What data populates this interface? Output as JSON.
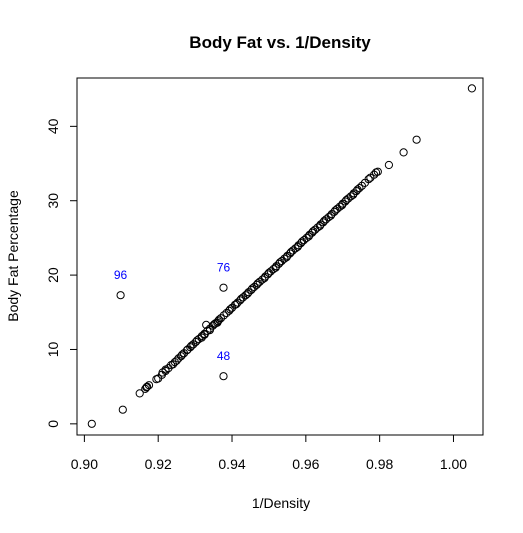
{
  "chart_data": {
    "type": "scatter",
    "title": "Body Fat vs. 1/Density",
    "xlabel": "1/Density",
    "ylabel": "Body Fat Percentage",
    "xlim": [
      0.898,
      1.008
    ],
    "ylim": [
      -1.5,
      46.5
    ],
    "xticks": [
      "0.90",
      "0.92",
      "0.94",
      "0.96",
      "0.98",
      "1.00"
    ],
    "yticks": [
      "0",
      "10",
      "20",
      "30",
      "40"
    ],
    "grid": false,
    "legend": "none",
    "annotations": [
      {
        "text": "96",
        "x": 0.9098,
        "y": 17.3,
        "color": "#0000ff"
      },
      {
        "text": "76",
        "x": 0.9377,
        "y": 18.3,
        "color": "#0000ff"
      },
      {
        "text": "48",
        "x": 0.9377,
        "y": 6.4,
        "color": "#0000ff"
      }
    ],
    "points": [
      [
        0.902,
        0.0
      ],
      [
        0.9104,
        1.9
      ],
      [
        0.9098,
        17.3
      ],
      [
        0.9377,
        18.3
      ],
      [
        0.9377,
        6.4
      ],
      [
        0.915,
        4.1
      ],
      [
        0.9165,
        4.7
      ],
      [
        0.917,
        5.0
      ],
      [
        0.9175,
        5.2
      ],
      [
        0.92,
        6.1
      ],
      [
        0.921,
        6.6
      ],
      [
        0.922,
        7.1
      ],
      [
        0.9228,
        7.5
      ],
      [
        0.9235,
        7.9
      ],
      [
        0.9245,
        8.3
      ],
      [
        0.9255,
        8.8
      ],
      [
        0.9262,
        9.1
      ],
      [
        0.927,
        9.5
      ],
      [
        0.9278,
        9.9
      ],
      [
        0.9287,
        10.3
      ],
      [
        0.9295,
        10.7
      ],
      [
        0.9302,
        11.0
      ],
      [
        0.931,
        11.4
      ],
      [
        0.9318,
        11.8
      ],
      [
        0.9325,
        12.1
      ],
      [
        0.9333,
        12.5
      ],
      [
        0.934,
        12.8
      ],
      [
        0.9348,
        13.2
      ],
      [
        0.9355,
        13.5
      ],
      [
        0.9362,
        13.8
      ],
      [
        0.937,
        14.2
      ],
      [
        0.9378,
        14.6
      ],
      [
        0.9385,
        14.9
      ],
      [
        0.9392,
        15.2
      ],
      [
        0.94,
        15.6
      ],
      [
        0.9408,
        16.0
      ],
      [
        0.9415,
        16.3
      ],
      [
        0.9422,
        16.6
      ],
      [
        0.943,
        17.0
      ],
      [
        0.9437,
        17.3
      ],
      [
        0.9445,
        17.7
      ],
      [
        0.9452,
        18.0
      ],
      [
        0.946,
        18.4
      ],
      [
        0.9467,
        18.7
      ],
      [
        0.9475,
        19.1
      ],
      [
        0.9482,
        19.4
      ],
      [
        0.949,
        19.8
      ],
      [
        0.9497,
        20.1
      ],
      [
        0.9505,
        20.5
      ],
      [
        0.9512,
        20.8
      ],
      [
        0.952,
        21.2
      ],
      [
        0.9527,
        21.5
      ],
      [
        0.9535,
        21.9
      ],
      [
        0.9542,
        22.2
      ],
      [
        0.955,
        22.6
      ],
      [
        0.9557,
        22.9
      ],
      [
        0.9565,
        23.3
      ],
      [
        0.9572,
        23.6
      ],
      [
        0.958,
        24.0
      ],
      [
        0.9587,
        24.3
      ],
      [
        0.9595,
        24.7
      ],
      [
        0.9602,
        25.0
      ],
      [
        0.961,
        25.4
      ],
      [
        0.9617,
        25.7
      ],
      [
        0.9625,
        26.1
      ],
      [
        0.9632,
        26.4
      ],
      [
        0.964,
        26.8
      ],
      [
        0.9647,
        27.1
      ],
      [
        0.9655,
        27.5
      ],
      [
        0.9662,
        27.8
      ],
      [
        0.967,
        28.2
      ],
      [
        0.9677,
        28.5
      ],
      [
        0.9685,
        28.9
      ],
      [
        0.9692,
        29.2
      ],
      [
        0.97,
        29.6
      ],
      [
        0.9707,
        29.9
      ],
      [
        0.9715,
        30.3
      ],
      [
        0.9722,
        30.6
      ],
      [
        0.973,
        31.0
      ],
      [
        0.9737,
        31.3
      ],
      [
        0.9745,
        31.7
      ],
      [
        0.976,
        32.4
      ],
      [
        0.9775,
        33.1
      ],
      [
        0.979,
        33.8
      ],
      [
        0.9825,
        34.8
      ],
      [
        0.9865,
        36.5
      ],
      [
        0.99,
        38.2
      ],
      [
        1.005,
        45.1
      ],
      [
        0.924,
        8.0
      ],
      [
        0.925,
        8.5
      ],
      [
        0.9265,
        9.3
      ],
      [
        0.928,
        10.0
      ],
      [
        0.929,
        10.5
      ],
      [
        0.9305,
        11.2
      ],
      [
        0.933,
        13.3
      ],
      [
        0.934,
        12.6
      ],
      [
        0.936,
        13.6
      ],
      [
        0.9395,
        15.4
      ],
      [
        0.9425,
        16.8
      ],
      [
        0.9455,
        18.2
      ],
      [
        0.947,
        18.9
      ],
      [
        0.95,
        20.3
      ],
      [
        0.953,
        21.7
      ],
      [
        0.956,
        23.1
      ],
      [
        0.959,
        24.5
      ],
      [
        0.962,
        25.9
      ],
      [
        0.965,
        27.3
      ],
      [
        0.968,
        28.7
      ],
      [
        0.971,
        30.1
      ],
      [
        0.974,
        31.5
      ],
      [
        0.977,
        32.9
      ],
      [
        0.9785,
        33.5
      ],
      [
        0.9795,
        33.9
      ],
      [
        0.9352,
        13.4
      ],
      [
        0.9365,
        14.0
      ],
      [
        0.9412,
        16.1
      ],
      [
        0.9442,
        17.5
      ],
      [
        0.9488,
        19.6
      ],
      [
        0.9518,
        21.0
      ],
      [
        0.9548,
        22.4
      ],
      [
        0.9578,
        23.8
      ],
      [
        0.9608,
        25.2
      ],
      [
        0.9638,
        26.6
      ],
      [
        0.9668,
        28.0
      ],
      [
        0.9698,
        29.4
      ],
      [
        0.9728,
        30.8
      ],
      [
        0.9752,
        32.0
      ],
      [
        0.9318,
        11.6
      ],
      [
        0.9326,
        12.0
      ],
      [
        0.922,
        7.3
      ],
      [
        0.9212,
        6.9
      ],
      [
        0.9195,
        6.0
      ],
      [
        0.9168,
        4.9
      ]
    ]
  }
}
